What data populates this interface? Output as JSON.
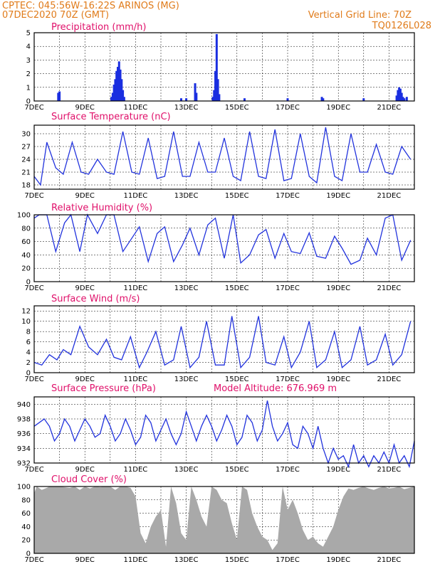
{
  "header": {
    "line1": "CPTEC:  045:56W-16:22S  ARINOS (MG)",
    "line2": "07DEC2020 70Z (GMT)",
    "grid_note": "Vertical Grid Line: 70Z",
    "model_code": "TQ0126L028"
  },
  "colors": {
    "line": "#2233dd",
    "bar": "#1a2ee0",
    "cloud": "#a9a9a9",
    "header": "#e07b1a",
    "title": "#e0106a"
  },
  "chart_data": [
    {
      "id": "precip",
      "type": "bar",
      "title": "Precipitation (mm/h)",
      "x_unit": "days since 7DEC 00Z",
      "ylim": [
        0,
        5
      ],
      "yticks": [
        0,
        1,
        2,
        3,
        4,
        5
      ],
      "xticks": [
        "7DEC",
        "9DEC",
        "11DEC",
        "13DEC",
        "15DEC",
        "17DEC",
        "19DEC",
        "21DEC"
      ],
      "x": [
        0.95,
        1.0,
        3.05,
        3.1,
        3.15,
        3.2,
        3.25,
        3.3,
        3.35,
        3.4,
        3.45,
        3.5,
        3.55,
        5.8,
        6.0,
        6.35,
        6.4,
        7.05,
        7.1,
        7.15,
        7.2,
        7.25,
        7.3,
        8.3,
        10.0,
        11.35,
        11.4,
        13.0,
        14.3,
        14.35,
        14.4,
        14.45,
        14.5,
        14.55,
        14.6,
        14.7
      ],
      "values": [
        0.6,
        0.7,
        0.3,
        0.6,
        1.2,
        1.6,
        2.2,
        2.5,
        2.9,
        2.3,
        1.6,
        0.8,
        0.3,
        0.2,
        0.2,
        1.3,
        0.6,
        0.3,
        0.8,
        2.2,
        4.9,
        1.6,
        0.5,
        0.2,
        0.2,
        0.3,
        0.2,
        0.2,
        0.4,
        0.8,
        1.0,
        0.9,
        0.6,
        0.3,
        0.2,
        0.3
      ]
    },
    {
      "id": "temp",
      "type": "line",
      "title": "Surface Temperature (nC)",
      "ylim": [
        17,
        32
      ],
      "yticks": [
        18,
        21,
        24,
        27,
        30
      ],
      "xticks": [
        "7DEC",
        "9DEC",
        "11DEC",
        "13DEC",
        "15DEC",
        "17DEC",
        "19DEC",
        "21DEC"
      ],
      "x": [
        0.0,
        0.25,
        0.5,
        0.85,
        1.15,
        1.5,
        1.85,
        2.15,
        2.5,
        2.85,
        3.15,
        3.5,
        3.85,
        4.15,
        4.5,
        4.85,
        5.15,
        5.5,
        5.85,
        6.15,
        6.5,
        6.85,
        7.15,
        7.5,
        7.85,
        8.15,
        8.5,
        8.85,
        9.15,
        9.5,
        9.85,
        10.15,
        10.5,
        10.85,
        11.15,
        11.5,
        11.85,
        12.15,
        12.5,
        12.85,
        13.15,
        13.5,
        13.85,
        14.15,
        14.5,
        14.85
      ],
      "values": [
        20,
        18,
        28,
        22,
        20.5,
        28,
        21,
        20.5,
        24,
        21,
        20.5,
        30.5,
        21,
        20.5,
        29,
        19.5,
        20,
        30.5,
        20,
        20,
        28,
        21,
        21,
        29,
        20,
        19,
        30.5,
        20,
        19.5,
        31,
        19,
        19.5,
        30,
        20,
        18.5,
        31.5,
        20,
        19,
        30,
        21,
        21,
        27.5,
        21,
        20.5,
        27,
        24
      ]
    },
    {
      "id": "rh",
      "type": "line",
      "title": "Relative Humidity (%)",
      "ylim": [
        0,
        100
      ],
      "yticks": [
        0,
        20,
        40,
        60,
        80,
        100
      ],
      "xticks": [
        "7DEC",
        "9DEC",
        "11DEC",
        "13DEC",
        "15DEC",
        "17DEC",
        "19DEC",
        "21DEC"
      ],
      "x": [
        0.0,
        0.2,
        0.5,
        0.85,
        1.2,
        1.45,
        1.8,
        2.1,
        2.5,
        2.85,
        3.15,
        3.5,
        3.8,
        4.15,
        4.5,
        4.85,
        5.15,
        5.5,
        5.85,
        6.15,
        6.5,
        6.85,
        7.15,
        7.5,
        7.85,
        8.15,
        8.5,
        8.85,
        9.15,
        9.5,
        9.85,
        10.15,
        10.5,
        10.85,
        11.15,
        11.5,
        11.85,
        12.15,
        12.5,
        12.85,
        13.15,
        13.5,
        13.85,
        14.15,
        14.5,
        14.85
      ],
      "values": [
        95,
        100,
        100,
        45,
        88,
        100,
        45,
        100,
        72,
        100,
        100,
        45,
        62,
        82,
        30,
        72,
        82,
        30,
        55,
        80,
        40,
        85,
        95,
        35,
        100,
        28,
        40,
        70,
        78,
        35,
        72,
        45,
        42,
        73,
        38,
        35,
        68,
        50,
        26,
        32,
        65,
        40,
        95,
        100,
        32,
        62
      ]
    },
    {
      "id": "wind",
      "type": "line",
      "title": "Surface Wind (m/s)",
      "ylim": [
        0,
        13
      ],
      "yticks": [
        0,
        2,
        4,
        6,
        8,
        10,
        12
      ],
      "xticks": [
        "7DEC",
        "9DEC",
        "11DEC",
        "13DEC",
        "15DEC",
        "17DEC",
        "19DEC",
        "21DEC"
      ],
      "x": [
        0.0,
        0.3,
        0.6,
        0.9,
        1.15,
        1.45,
        1.8,
        2.15,
        2.5,
        2.85,
        3.15,
        3.45,
        3.8,
        4.15,
        4.45,
        4.8,
        5.15,
        5.5,
        5.8,
        6.15,
        6.5,
        6.8,
        7.15,
        7.5,
        7.8,
        8.15,
        8.5,
        8.85,
        9.15,
        9.5,
        9.85,
        10.15,
        10.5,
        10.85,
        11.15,
        11.5,
        11.85,
        12.15,
        12.5,
        12.85,
        13.15,
        13.5,
        13.85,
        14.15,
        14.5,
        14.85
      ],
      "values": [
        2,
        1.5,
        3.5,
        2.5,
        4.5,
        3.5,
        9,
        5,
        3.5,
        6.5,
        3,
        2.5,
        7,
        1,
        4,
        8,
        1.5,
        2.5,
        9,
        1,
        3,
        10,
        1.5,
        1.5,
        11,
        1,
        3,
        11,
        2,
        1.5,
        7,
        1,
        4,
        10,
        1,
        2.5,
        8,
        1,
        2.5,
        9,
        1.5,
        2.5,
        7.5,
        1.5,
        3.5,
        10
      ]
    },
    {
      "id": "pressure",
      "type": "line",
      "title": "Surface Pressure (hPa)",
      "extra_label": "Model Altitude: 676.969 m",
      "ylim": [
        932,
        941
      ],
      "yticks": [
        932,
        934,
        936,
        938,
        940
      ],
      "xticks": [
        "7DEC",
        "9DEC",
        "11DEC",
        "13DEC",
        "15DEC",
        "17DEC",
        "19DEC",
        "21DEC"
      ],
      "x": [
        0.0,
        0.2,
        0.4,
        0.6,
        0.8,
        1.0,
        1.2,
        1.4,
        1.6,
        1.8,
        2.0,
        2.2,
        2.4,
        2.6,
        2.8,
        3.0,
        3.2,
        3.4,
        3.6,
        3.8,
        4.0,
        4.2,
        4.4,
        4.6,
        4.8,
        5.0,
        5.2,
        5.4,
        5.6,
        5.8,
        6.0,
        6.2,
        6.4,
        6.6,
        6.8,
        7.0,
        7.2,
        7.4,
        7.6,
        7.8,
        8.0,
        8.2,
        8.4,
        8.6,
        8.8,
        9.0,
        9.2,
        9.4,
        9.6,
        9.8,
        10.0,
        10.2,
        10.4,
        10.6,
        10.8,
        11.0,
        11.2,
        11.4,
        11.6,
        11.8,
        12.0,
        12.2,
        12.4,
        12.6,
        12.8,
        13.0,
        13.2,
        13.4,
        13.6,
        13.8,
        14.0,
        14.2,
        14.4,
        14.6,
        14.8,
        15.0
      ],
      "values": [
        937,
        937.5,
        938,
        937,
        935,
        936,
        938,
        937,
        935,
        936.5,
        938,
        937,
        935.5,
        936,
        938.5,
        937,
        935,
        936,
        938,
        936.5,
        934.5,
        935.5,
        938.5,
        937.5,
        935,
        936.5,
        938,
        936,
        934.5,
        936,
        939,
        937,
        935,
        937,
        938.5,
        937,
        935,
        936.5,
        938.5,
        937,
        934.5,
        935.5,
        938.5,
        937.5,
        935,
        936.5,
        940.5,
        937,
        935,
        936,
        937.5,
        934.5,
        934,
        937,
        936,
        934,
        937,
        934,
        932,
        934,
        932.5,
        933,
        931.5,
        934.5,
        932,
        933,
        931.5,
        933,
        932,
        933.5,
        932,
        934.5,
        932,
        933,
        931.5,
        935
      ]
    },
    {
      "id": "cloud",
      "type": "area",
      "title": "Cloud Cover (%)",
      "ylim": [
        0,
        100
      ],
      "yticks": [
        0,
        20,
        40,
        60,
        80,
        100
      ],
      "xticks": [
        "7DEC",
        "9DEC",
        "11DEC",
        "13DEC",
        "15DEC",
        "17DEC",
        "19DEC",
        "21DEC"
      ],
      "x": [
        0.0,
        0.1,
        0.3,
        0.5,
        0.6,
        1.0,
        1.4,
        1.6,
        1.8,
        2.0,
        2.2,
        2.4,
        2.6,
        2.8,
        3.0,
        3.2,
        3.4,
        3.6,
        3.8,
        4.0,
        4.2,
        4.4,
        4.6,
        4.8,
        5.0,
        5.2,
        5.4,
        5.6,
        5.8,
        6.0,
        6.2,
        6.4,
        6.6,
        6.8,
        7.0,
        7.2,
        7.4,
        7.6,
        7.8,
        8.0,
        8.2,
        8.4,
        8.6,
        8.8,
        9.0,
        9.2,
        9.4,
        9.6,
        9.8,
        10.0,
        10.2,
        10.4,
        10.6,
        10.8,
        11.0,
        11.2,
        11.4,
        11.6,
        11.8,
        12.0,
        12.2,
        12.4,
        12.6,
        12.8,
        13.0,
        13.2,
        13.4,
        13.6,
        13.8,
        14.0,
        14.2,
        14.4,
        14.6,
        14.8,
        15.0
      ],
      "values": [
        90,
        100,
        95,
        98,
        100,
        100,
        98,
        100,
        95,
        100,
        97,
        100,
        99,
        100,
        100,
        95,
        100,
        100,
        98,
        85,
        30,
        15,
        40,
        55,
        65,
        10,
        100,
        75,
        30,
        20,
        100,
        80,
        55,
        40,
        100,
        95,
        80,
        75,
        45,
        20,
        100,
        95,
        60,
        40,
        25,
        20,
        5,
        15,
        100,
        65,
        80,
        60,
        35,
        20,
        25,
        15,
        10,
        25,
        40,
        65,
        85,
        97,
        95,
        98,
        100,
        97,
        95,
        98,
        100,
        97,
        98,
        100,
        96,
        98,
        100
      ]
    }
  ]
}
